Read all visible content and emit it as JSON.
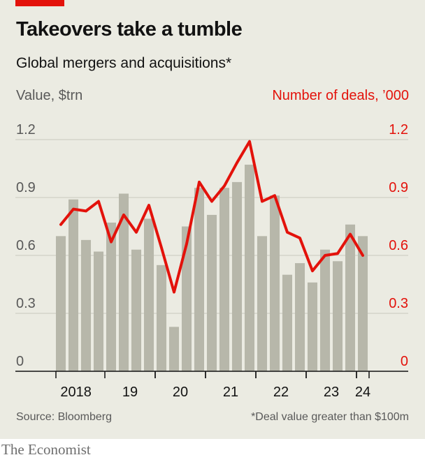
{
  "header": {
    "title": "Takeovers take a tumble",
    "subtitle": "Global mergers and acquisitions*",
    "left_axis_title": "Value, $trn",
    "right_axis_title": "Number of deals, ’000"
  },
  "footer": {
    "source": "Source: Bloomberg",
    "note": "*Deal value greater than $100m"
  },
  "brand": "The Economist",
  "colors": {
    "accent": "#e3120b",
    "bar": "#b7b7aa",
    "background": "#ebebe2"
  },
  "chart_data": {
    "type": "bar",
    "title": "Takeovers take a tumble",
    "subtitle": "Global mergers and acquisitions*",
    "ylabel": "Value, $trn",
    "ylabel_right": "Number of deals, ’000",
    "ylim": [
      0,
      1.2
    ],
    "ylim_right": [
      0,
      1.2
    ],
    "yticks": [
      "0",
      "0.3",
      "0.6",
      "0.9",
      "1.2"
    ],
    "yticks_right": [
      "0",
      "0.3",
      "0.6",
      "0.9",
      "1.2"
    ],
    "xticks": [
      "2018",
      "19",
      "20",
      "21",
      "22",
      "23",
      "24"
    ],
    "categories": [
      "2018 Q1",
      "2018 Q2",
      "2018 Q3",
      "2018 Q4",
      "2019 Q1",
      "2019 Q2",
      "2019 Q3",
      "2019 Q4",
      "2020 Q1",
      "2020 Q2",
      "2020 Q3",
      "2020 Q4",
      "2021 Q1",
      "2021 Q2",
      "2021 Q3",
      "2021 Q4",
      "2022 Q1",
      "2022 Q2",
      "2022 Q3",
      "2022 Q4",
      "2023 Q1",
      "2023 Q2",
      "2023 Q3",
      "2023 Q4",
      "2024 Q1"
    ],
    "series": [
      {
        "name": "Value, $trn",
        "type": "bar",
        "axis": "left",
        "color": "#b7b7aa",
        "values": [
          0.7,
          0.89,
          0.68,
          0.62,
          0.77,
          0.92,
          0.63,
          0.79,
          0.55,
          0.23,
          0.75,
          0.95,
          0.81,
          0.95,
          0.98,
          1.07,
          0.7,
          0.91,
          0.5,
          0.56,
          0.46,
          0.63,
          0.57,
          0.76,
          0.7
        ]
      },
      {
        "name": "Number of deals, ’000",
        "type": "line",
        "axis": "right",
        "color": "#e3120b",
        "values": [
          0.76,
          0.84,
          0.83,
          0.88,
          0.67,
          0.81,
          0.72,
          0.86,
          0.64,
          0.41,
          0.66,
          0.98,
          0.88,
          0.96,
          1.08,
          1.19,
          0.88,
          0.91,
          0.72,
          0.69,
          0.52,
          0.6,
          0.61,
          0.71,
          0.6
        ]
      }
    ],
    "grid": true
  }
}
